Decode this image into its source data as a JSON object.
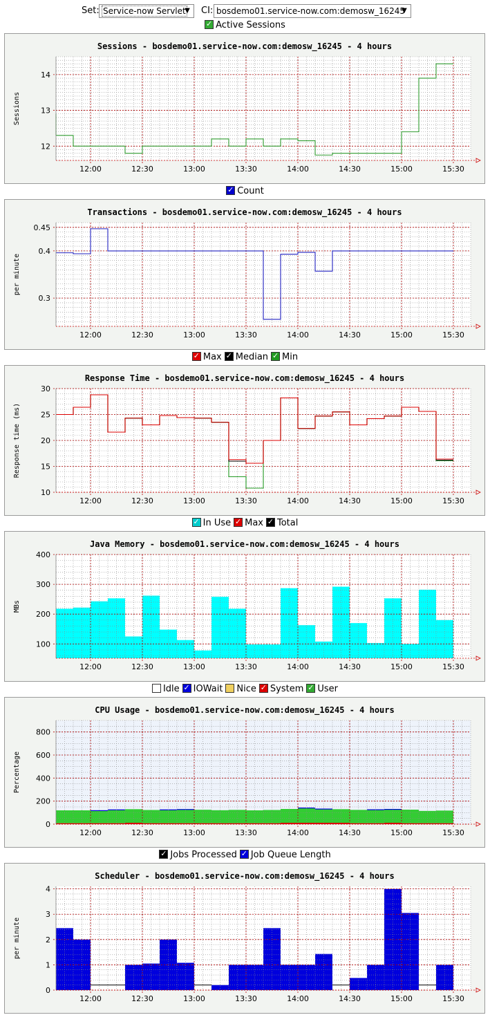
{
  "controls": {
    "set_label": "Set:",
    "set_value": "Service-now Servlet",
    "ci_label": "CI:",
    "ci_value": "bosdemo01.service-now.com:demosw_16245"
  },
  "colors": {
    "panel_bg": "#f2f4f1",
    "grid_major": "#b00000",
    "grid_minor": "#8a8a8a",
    "sessions_line": "#2e9a2e",
    "transactions_line": "#2020c0",
    "cyan": "#00ffff",
    "green": "#33cc33",
    "blue": "#0000dd",
    "red": "#dd0000",
    "dark": "#000000"
  },
  "charts": [
    {
      "id": "sessions",
      "legend": [
        {
          "label": "Active Sessions",
          "color": "#33aa33",
          "checked": true
        }
      ],
      "chart_data": {
        "type": "line",
        "title": "Sessions - bosdemo01.service-now.com:demosw_16245 - 4 hours",
        "ylabel": "Sessions",
        "xlabel": "",
        "x_ticks": [
          "12:00",
          "12:30",
          "13:00",
          "13:30",
          "14:00",
          "14:30",
          "15:00",
          "15:30"
        ],
        "y_ticks": [
          12,
          13,
          14
        ],
        "ylim": [
          11.6,
          14.5
        ],
        "x_range": [
          "11:40",
          "15:40"
        ],
        "step_minutes": 10,
        "series": [
          {
            "color": "#2e9a2e",
            "values": [
              12.3,
              12.0,
              12.0,
              12.0,
              11.8,
              12.0,
              12.0,
              12.0,
              12.0,
              12.2,
              12.0,
              12.2,
              12.0,
              12.2,
              12.15,
              11.75,
              11.8,
              11.8,
              11.8,
              11.8,
              12.4,
              13.9,
              14.3
            ]
          }
        ]
      }
    },
    {
      "id": "transactions",
      "legend": [
        {
          "label": "Count",
          "color": "#0000cc",
          "checked": true
        }
      ],
      "chart_data": {
        "type": "line",
        "title": "Transactions - bosdemo01.service-now.com:demosw_16245 - 4 hours",
        "ylabel": "per minute",
        "xlabel": "",
        "x_ticks": [
          "12:00",
          "12:30",
          "13:00",
          "13:30",
          "14:00",
          "14:30",
          "15:00",
          "15:30"
        ],
        "y_ticks": [
          0.3,
          0.4,
          0.45
        ],
        "ylim": [
          0.24,
          0.46
        ],
        "x_range": [
          "11:40",
          "15:40"
        ],
        "step_minutes": 10,
        "series": [
          {
            "color": "#2020c0",
            "values": [
              0.396,
              0.394,
              0.447,
              0.4,
              0.4,
              0.4,
              0.4,
              0.4,
              0.4,
              0.4,
              0.4,
              0.4,
              0.255,
              0.393,
              0.397,
              0.357,
              0.4,
              0.4,
              0.4,
              0.4,
              0.4,
              0.4,
              0.4
            ]
          }
        ]
      }
    },
    {
      "id": "response",
      "legend": [
        {
          "label": "Max",
          "color": "#dd0000",
          "checked": true
        },
        {
          "label": "Median",
          "color": "#000000",
          "checked": true
        },
        {
          "label": "Min",
          "color": "#229922",
          "checked": true
        }
      ],
      "chart_data": {
        "type": "line",
        "title": "Response Time - bosdemo01.service-now.com:demosw_16245 - 4 hours",
        "ylabel": "Response time (ms)",
        "xlabel": "",
        "x_ticks": [
          "12:00",
          "12:30",
          "13:00",
          "13:30",
          "14:00",
          "14:30",
          "15:00",
          "15:30"
        ],
        "y_ticks": [
          10,
          15,
          20,
          25,
          30
        ],
        "ylim": [
          10,
          30
        ],
        "x_range": [
          "11:40",
          "15:40"
        ],
        "step_minutes": 10,
        "series": [
          {
            "name": "Max",
            "color": "#dd0000",
            "values": [
              25.0,
              26.4,
              28.8,
              21.6,
              24.3,
              23.0,
              24.8,
              24.4,
              24.3,
              23.5,
              16.3,
              15.6,
              20.0,
              28.2,
              22.3,
              24.7,
              25.5,
              23.0,
              24.2,
              24.7,
              26.4,
              25.6,
              16.4
            ]
          },
          {
            "name": "Median",
            "color": "#000000",
            "values": [
              25.0,
              26.4,
              28.8,
              21.6,
              24.3,
              23.0,
              24.8,
              24.4,
              24.3,
              23.5,
              16.0,
              15.6,
              20.0,
              28.2,
              22.3,
              24.7,
              25.5,
              23.0,
              24.2,
              24.7,
              26.4,
              25.6,
              16.2
            ]
          },
          {
            "name": "Min",
            "color": "#229922",
            "values": [
              25.0,
              26.4,
              28.8,
              21.6,
              24.3,
              23.0,
              24.8,
              24.4,
              24.3,
              23.5,
              13.0,
              10.8,
              20.0,
              28.2,
              22.3,
              24.7,
              25.5,
              23.0,
              24.2,
              24.7,
              26.4,
              25.6,
              16.1
            ]
          }
        ]
      }
    },
    {
      "id": "memory",
      "legend": [
        {
          "label": "In Use",
          "color": "#00cccc",
          "checked": true
        },
        {
          "label": "Max",
          "color": "#dd0000",
          "checked": true
        },
        {
          "label": "Total",
          "color": "#000000",
          "checked": true
        }
      ],
      "chart_data": {
        "type": "area",
        "title": "Java Memory - bosdemo01.service-now.com:demosw_16245 - 4 hours",
        "ylabel": "MBs",
        "xlabel": "",
        "x_ticks": [
          "12:00",
          "12:30",
          "13:00",
          "13:30",
          "14:00",
          "14:30",
          "15:00",
          "15:30"
        ],
        "y_ticks": [
          100,
          200,
          300,
          400
        ],
        "ylim": [
          52,
          400
        ],
        "x_range": [
          "11:40",
          "15:40"
        ],
        "step_minutes": 10,
        "series": [
          {
            "name": "In Use",
            "color": "#00ffff",
            "values": [
              218,
              222,
              243,
              253,
              125,
              262,
              148,
              113,
              78,
              258,
              218,
              98,
              98,
              287,
              163,
              108,
              292,
              170,
              103,
              253,
              100,
              282,
              180
            ]
          }
        ]
      }
    },
    {
      "id": "cpu",
      "legend": [
        {
          "label": "Idle",
          "color": "#ffffff",
          "checked": false
        },
        {
          "label": "IOWait",
          "color": "#0000dd",
          "checked": true
        },
        {
          "label": "Nice",
          "color": "#f0d060",
          "checked": false
        },
        {
          "label": "System",
          "color": "#dd0000",
          "checked": true
        },
        {
          "label": "User",
          "color": "#33aa33",
          "checked": true
        }
      ],
      "chart_data": {
        "type": "area",
        "title": "CPU Usage - bosdemo01.service-now.com:demosw_16245 - 4 hours",
        "ylabel": "Percentage",
        "xlabel": "",
        "x_ticks": [
          "12:00",
          "12:30",
          "13:00",
          "13:30",
          "14:00",
          "14:30",
          "15:00",
          "15:30"
        ],
        "y_ticks": [
          0,
          200,
          400,
          600,
          800
        ],
        "ylim": [
          0,
          900
        ],
        "x_range": [
          "11:40",
          "15:40"
        ],
        "step_minutes": 10,
        "series": [
          {
            "name": "System",
            "color": "#dd0000",
            "values": [
              8,
              8,
              8,
              8,
              12,
              8,
              8,
              8,
              8,
              8,
              8,
              8,
              8,
              12,
              12,
              12,
              12,
              8,
              8,
              12,
              8,
              8,
              8
            ]
          },
          {
            "name": "User",
            "color": "#33cc33",
            "values": [
              112,
              112,
              110,
              118,
              118,
              115,
              117,
              120,
              117,
              113,
              116,
              112,
              115,
              120,
              128,
              120,
              118,
              116,
              118,
              118,
              118,
              107,
              110
            ]
          },
          {
            "name": "IOWait",
            "color": "#0000dd",
            "values": [
              0,
              0,
              3,
              2,
              0,
              0,
              3,
              3,
              0,
              0,
              0,
              0,
              0,
              0,
              4,
              3,
              0,
              0,
              3,
              2,
              0,
              0,
              0
            ]
          }
        ]
      }
    },
    {
      "id": "scheduler",
      "legend": [
        {
          "label": "Jobs Processed",
          "color": "#000000",
          "checked": true
        },
        {
          "label": "Job Queue Length",
          "color": "#0000dd",
          "checked": true
        }
      ],
      "chart_data": {
        "type": "area",
        "title": "Scheduler - bosdemo01.service-now.com:demosw_16245 - 4 hours",
        "ylabel": "per minute",
        "xlabel": "",
        "x_ticks": [
          "12:00",
          "12:30",
          "13:00",
          "13:30",
          "14:00",
          "14:30",
          "15:00",
          "15:30"
        ],
        "y_ticks": [
          0,
          1,
          2,
          3,
          4
        ],
        "ylim": [
          0,
          4.1
        ],
        "x_range": [
          "11:40",
          "15:40"
        ],
        "step_minutes": 10,
        "series": [
          {
            "name": "Job Queue Length",
            "color": "#0000dd",
            "values": [
              2.45,
              2.0,
              0.0,
              0.0,
              1.0,
              1.05,
              2.0,
              1.08,
              0.0,
              0.2,
              1.0,
              1.0,
              2.45,
              1.0,
              1.0,
              1.43,
              0.0,
              0.48,
              1.0,
              4.0,
              3.05,
              0.0,
              1.0
            ]
          },
          {
            "name": "Jobs Processed",
            "color": "#000000",
            "values": [
              0.2,
              0.2,
              0.2,
              0.2,
              0.2,
              0.2,
              0.2,
              0.2,
              0.2,
              0.2,
              0.2,
              0.2,
              0.2,
              0.2,
              0.2,
              0.2,
              0.2,
              0.2,
              0.2,
              0.2,
              0.2,
              0.2,
              0.2
            ]
          }
        ]
      }
    }
  ]
}
